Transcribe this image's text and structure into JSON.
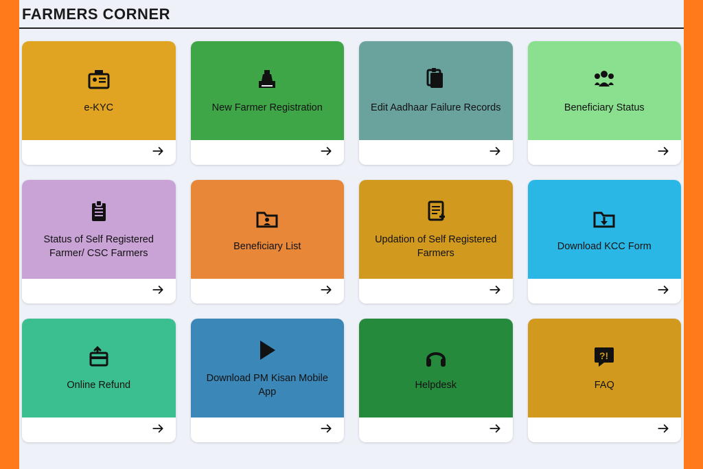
{
  "page": {
    "title": "FARMERS CORNER",
    "background_color": "#ff7a1a",
    "panel_color": "#eef1f8"
  },
  "cards": [
    {
      "label": "e-KYC",
      "color": "#e0a422",
      "icon": "id-card"
    },
    {
      "label": "New Farmer Registration",
      "color": "#3fa648",
      "icon": "cash-register"
    },
    {
      "label": "Edit Aadhaar Failure Records",
      "color": "#6aa39e",
      "icon": "clipboard-stack"
    },
    {
      "label": "Beneficiary Status",
      "color": "#8be08f",
      "icon": "users"
    },
    {
      "label": "Status of Self Registered Farmer/ CSC Farmers",
      "color": "#c9a3d6",
      "icon": "clipboard-list"
    },
    {
      "label": "Beneficiary List",
      "color": "#e88738",
      "icon": "folder-user"
    },
    {
      "label": "Updation of Self Registered Farmers",
      "color": "#d19a1f",
      "icon": "file-plus"
    },
    {
      "label": "Download KCC Form",
      "color": "#2bb7e5",
      "icon": "folder-download"
    },
    {
      "label": "Online Refund",
      "color": "#3bbf91",
      "icon": "card-refund"
    },
    {
      "label": "Download PM Kisan Mobile App",
      "color": "#3b87b8",
      "icon": "play-store"
    },
    {
      "label": "Helpdesk",
      "color": "#268a3d",
      "icon": "headphones"
    },
    {
      "label": "FAQ",
      "color": "#d19a1f",
      "icon": "faq"
    }
  ]
}
